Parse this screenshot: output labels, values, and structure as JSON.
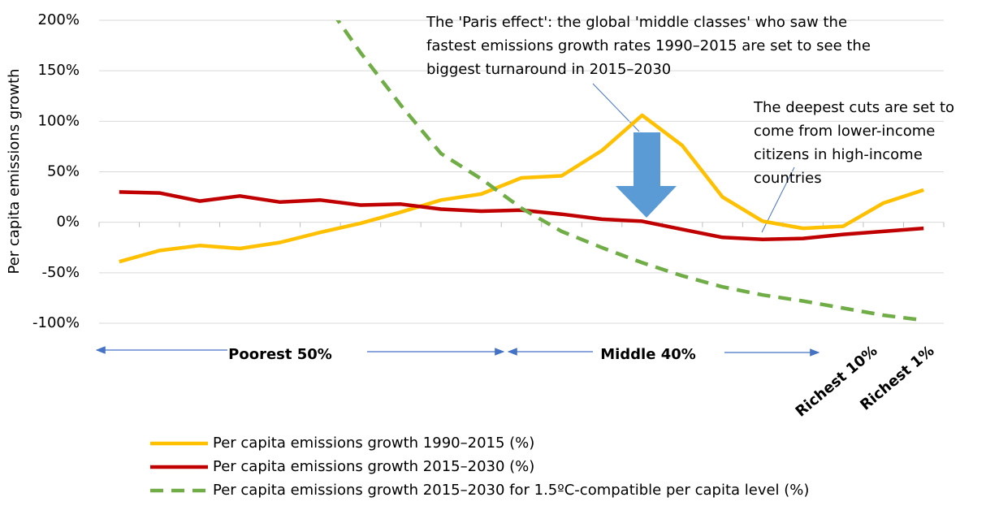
{
  "chart_data": {
    "type": "line",
    "y_axis_label": "Per capita emissions growth",
    "categories": [
      null,
      null,
      null,
      null,
      null,
      null,
      null,
      null,
      null,
      null,
      null,
      null,
      null,
      null,
      null,
      null,
      null,
      null,
      null,
      null,
      null
    ],
    "ylim": [
      -100,
      200
    ],
    "yticks": [
      {
        "value": -100,
        "label": "-100%"
      },
      {
        "value": -50,
        "label": "-50%"
      },
      {
        "value": 0,
        "label": "0%"
      },
      {
        "value": 50,
        "label": "50%"
      },
      {
        "value": 100,
        "label": "100%"
      },
      {
        "value": 150,
        "label": "150%"
      },
      {
        "value": 200,
        "label": "200%"
      }
    ],
    "grid": true,
    "series": [
      {
        "name": "Per capita emissions growth 1990–2015 (%)",
        "color": "#FFC000",
        "line_style": "solid",
        "values": [
          -39,
          -28,
          -23,
          -26,
          -20,
          -10,
          -1,
          10,
          22,
          28,
          44,
          46,
          71,
          106,
          76,
          25,
          1,
          -6,
          -4,
          19,
          32
        ]
      },
      {
        "name": "Per capita emissions growth 2015–2030 (%)",
        "color": "#C00000",
        "line_style": "solid",
        "values": [
          30,
          29,
          21,
          26,
          20,
          22,
          17,
          18,
          13,
          11,
          12,
          8,
          3,
          1,
          -7,
          -15,
          -17,
          -16,
          -12,
          -9,
          -6
        ]
      },
      {
        "name": "Per capita emissions growth 2015–2030 for 1.5ºC-compatible per capita level (%)",
        "color": "#70AD47",
        "line_style": "dashed",
        "values": [
          null,
          null,
          null,
          null,
          null,
          225,
          168,
          116,
          68,
          43,
          14,
          -9,
          -25,
          -40,
          -53,
          -64,
          -72,
          -78,
          -85,
          -92,
          -97
        ]
      }
    ],
    "groups": [
      "Poorest 50%",
      "Middle 40%",
      "Richest 10%",
      "Richest 1%"
    ],
    "annotations": [
      [
        "The 'Paris effect': the global 'middle classes' who saw the",
        "fastest emissions growth rates 1990–2015 are set to see the",
        "biggest turnaround in 2015–2030"
      ],
      [
        "The deepest cuts are set to",
        "come from lower-income",
        "citizens in high-income",
        "countries"
      ]
    ]
  }
}
